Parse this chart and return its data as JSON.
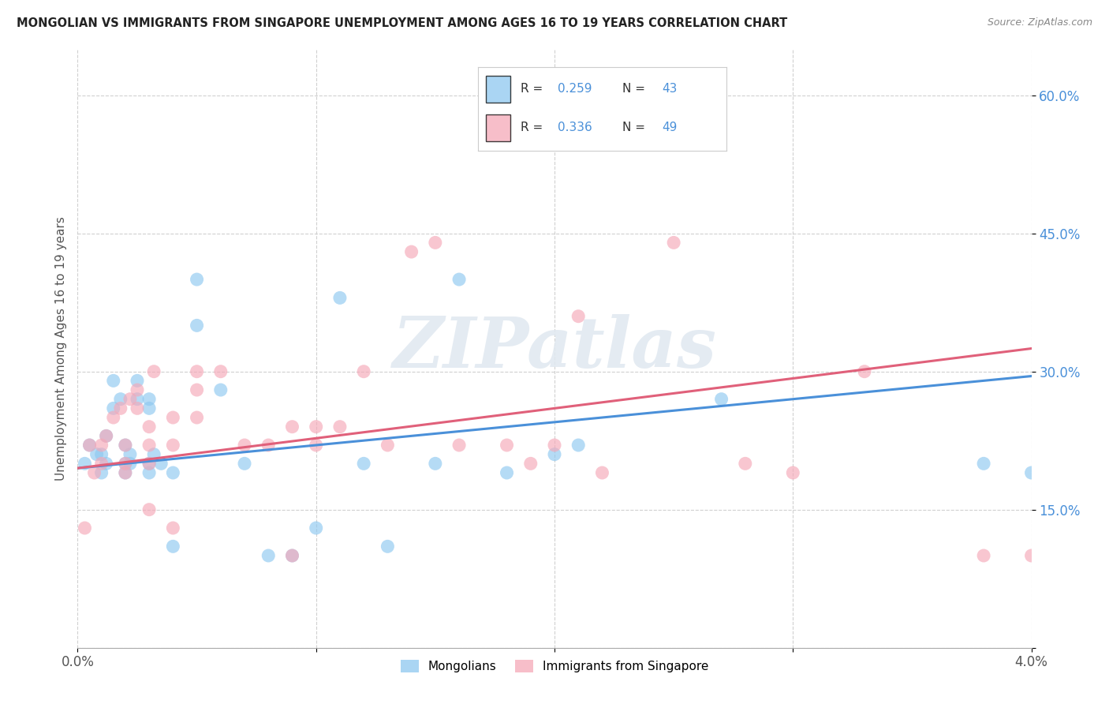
{
  "title": "MONGOLIAN VS IMMIGRANTS FROM SINGAPORE UNEMPLOYMENT AMONG AGES 16 TO 19 YEARS CORRELATION CHART",
  "source": "Source: ZipAtlas.com",
  "ylabel": "Unemployment Among Ages 16 to 19 years",
  "xlim": [
    0.0,
    0.04
  ],
  "ylim": [
    0.0,
    0.65
  ],
  "xticks": [
    0.0,
    0.01,
    0.02,
    0.03,
    0.04
  ],
  "xticklabels": [
    "0.0%",
    "",
    "",
    "",
    "4.0%"
  ],
  "yticks": [
    0.0,
    0.15,
    0.3,
    0.45,
    0.6
  ],
  "yticklabels": [
    "",
    "15.0%",
    "30.0%",
    "45.0%",
    "60.0%"
  ],
  "mongolian_R": "0.259",
  "mongolian_N": "43",
  "singapore_R": "0.336",
  "singapore_N": "49",
  "blue_color": "#8ec8f0",
  "blue_line_color": "#4a90d9",
  "pink_color": "#f5a8b8",
  "pink_line_color": "#e0607a",
  "legend_label_blue": "Mongolians",
  "legend_label_pink": "Immigrants from Singapore",
  "watermark": "ZIPatlas",
  "mongolian_x": [
    0.0003,
    0.0005,
    0.0008,
    0.001,
    0.001,
    0.0012,
    0.0012,
    0.0015,
    0.0015,
    0.0018,
    0.002,
    0.002,
    0.002,
    0.0022,
    0.0022,
    0.0025,
    0.0025,
    0.003,
    0.003,
    0.003,
    0.003,
    0.0032,
    0.0035,
    0.004,
    0.004,
    0.005,
    0.005,
    0.006,
    0.007,
    0.008,
    0.009,
    0.01,
    0.011,
    0.012,
    0.013,
    0.015,
    0.016,
    0.018,
    0.02,
    0.021,
    0.027,
    0.038,
    0.04
  ],
  "mongolian_y": [
    0.2,
    0.22,
    0.21,
    0.19,
    0.21,
    0.23,
    0.2,
    0.29,
    0.26,
    0.27,
    0.22,
    0.2,
    0.19,
    0.21,
    0.2,
    0.29,
    0.27,
    0.27,
    0.26,
    0.2,
    0.19,
    0.21,
    0.2,
    0.19,
    0.11,
    0.4,
    0.35,
    0.28,
    0.2,
    0.1,
    0.1,
    0.13,
    0.38,
    0.2,
    0.11,
    0.2,
    0.4,
    0.19,
    0.21,
    0.22,
    0.27,
    0.2,
    0.19
  ],
  "singapore_x": [
    0.0003,
    0.0005,
    0.0007,
    0.001,
    0.001,
    0.0012,
    0.0015,
    0.0018,
    0.002,
    0.002,
    0.002,
    0.0022,
    0.0025,
    0.0025,
    0.003,
    0.003,
    0.003,
    0.003,
    0.0032,
    0.004,
    0.004,
    0.004,
    0.005,
    0.005,
    0.005,
    0.006,
    0.007,
    0.008,
    0.009,
    0.009,
    0.01,
    0.01,
    0.011,
    0.012,
    0.013,
    0.014,
    0.015,
    0.016,
    0.018,
    0.019,
    0.02,
    0.021,
    0.022,
    0.025,
    0.028,
    0.03,
    0.033,
    0.038,
    0.04
  ],
  "singapore_y": [
    0.13,
    0.22,
    0.19,
    0.2,
    0.22,
    0.23,
    0.25,
    0.26,
    0.19,
    0.2,
    0.22,
    0.27,
    0.28,
    0.26,
    0.24,
    0.22,
    0.2,
    0.15,
    0.3,
    0.25,
    0.22,
    0.13,
    0.3,
    0.28,
    0.25,
    0.3,
    0.22,
    0.22,
    0.24,
    0.1,
    0.24,
    0.22,
    0.24,
    0.3,
    0.22,
    0.43,
    0.44,
    0.22,
    0.22,
    0.2,
    0.22,
    0.36,
    0.19,
    0.44,
    0.2,
    0.19,
    0.3,
    0.1,
    0.1
  ],
  "blue_line_x0": 0.0,
  "blue_line_y0": 0.195,
  "blue_line_x1": 0.04,
  "blue_line_y1": 0.295,
  "pink_line_x0": 0.0,
  "pink_line_y0": 0.195,
  "pink_line_x1": 0.04,
  "pink_line_y1": 0.325
}
